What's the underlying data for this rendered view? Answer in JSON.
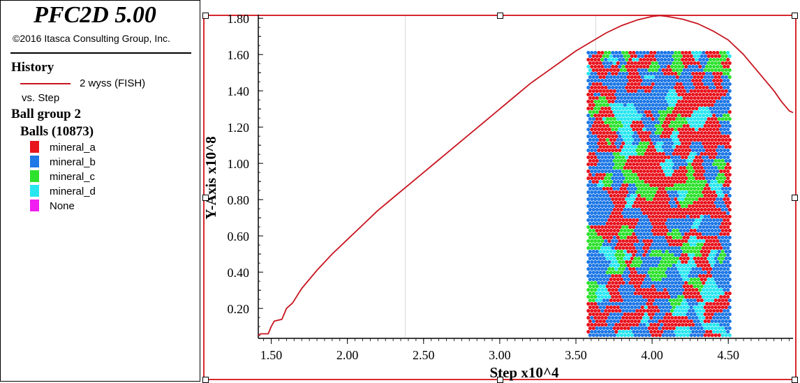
{
  "app": {
    "title": "PFC2D 5.00",
    "copyright": "©2016 Itasca Consulting Group, Inc."
  },
  "legend": {
    "history_header": "History",
    "history_item": "2 wyss (FISH)",
    "history_vs": "vs. Step",
    "ball_group_header": "Ball group 2",
    "balls_header": "Balls (10873)",
    "groups": [
      {
        "label": "mineral_a",
        "color": "#e8141e"
      },
      {
        "label": "mineral_b",
        "color": "#1e78e6"
      },
      {
        "label": "mineral_c",
        "color": "#2de12d"
      },
      {
        "label": "mineral_d",
        "color": "#28e6f0"
      },
      {
        "label": "None",
        "color": "#f01ef0"
      }
    ]
  },
  "colors": {
    "history_line": "#c8141e",
    "frame": "#d8282e"
  },
  "chart_data": {
    "type": "line",
    "xlabel": "Step x10^4",
    "ylabel": "Y-Axis x10^8",
    "xlim": [
      1.415,
      4.925
    ],
    "ylim": [
      0.035,
      1.82
    ],
    "xticks": [
      1.5,
      2.0,
      2.5,
      3.0,
      3.5,
      4.0,
      4.5
    ],
    "xtick_labels": [
      "1.50",
      "2.00",
      "2.50",
      "3.00",
      "3.50",
      "4.00",
      "4.50"
    ],
    "yticks": [
      0.2,
      0.4,
      0.6,
      0.8,
      1.0,
      1.2,
      1.4,
      1.6,
      1.8
    ],
    "ytick_labels": [
      "0.20",
      "0.40",
      "0.60",
      "0.80",
      "1.00",
      "1.20",
      "1.40",
      "1.60",
      "1.80"
    ],
    "grid_x": [
      2.38,
      3.63
    ],
    "series": [
      {
        "name": "2 wyss (FISH)",
        "x": [
          1.415,
          1.43,
          1.48,
          1.5,
          1.52,
          1.57,
          1.6,
          1.64,
          1.7,
          1.8,
          1.9,
          2.0,
          2.1,
          2.2,
          2.3,
          2.4,
          2.5,
          2.6,
          2.7,
          2.8,
          2.9,
          3.0,
          3.1,
          3.2,
          3.3,
          3.4,
          3.5,
          3.6,
          3.7,
          3.8,
          3.9,
          4.0,
          4.05,
          4.1,
          4.2,
          4.3,
          4.4,
          4.5,
          4.6,
          4.7,
          4.8,
          4.85,
          4.88,
          4.9,
          4.925
        ],
        "y": [
          0.05,
          0.06,
          0.06,
          0.1,
          0.13,
          0.14,
          0.2,
          0.23,
          0.31,
          0.41,
          0.5,
          0.58,
          0.66,
          0.74,
          0.81,
          0.88,
          0.95,
          1.02,
          1.09,
          1.16,
          1.23,
          1.3,
          1.37,
          1.44,
          1.5,
          1.56,
          1.62,
          1.67,
          1.72,
          1.76,
          1.79,
          1.81,
          1.815,
          1.81,
          1.795,
          1.77,
          1.73,
          1.68,
          1.6,
          1.5,
          1.4,
          1.34,
          1.31,
          1.29,
          1.28
        ]
      }
    ],
    "ball_region": {
      "x_range": [
        3.57,
        4.53
      ],
      "y_range": [
        0.04,
        1.62
      ],
      "ball_count": 10873
    }
  }
}
